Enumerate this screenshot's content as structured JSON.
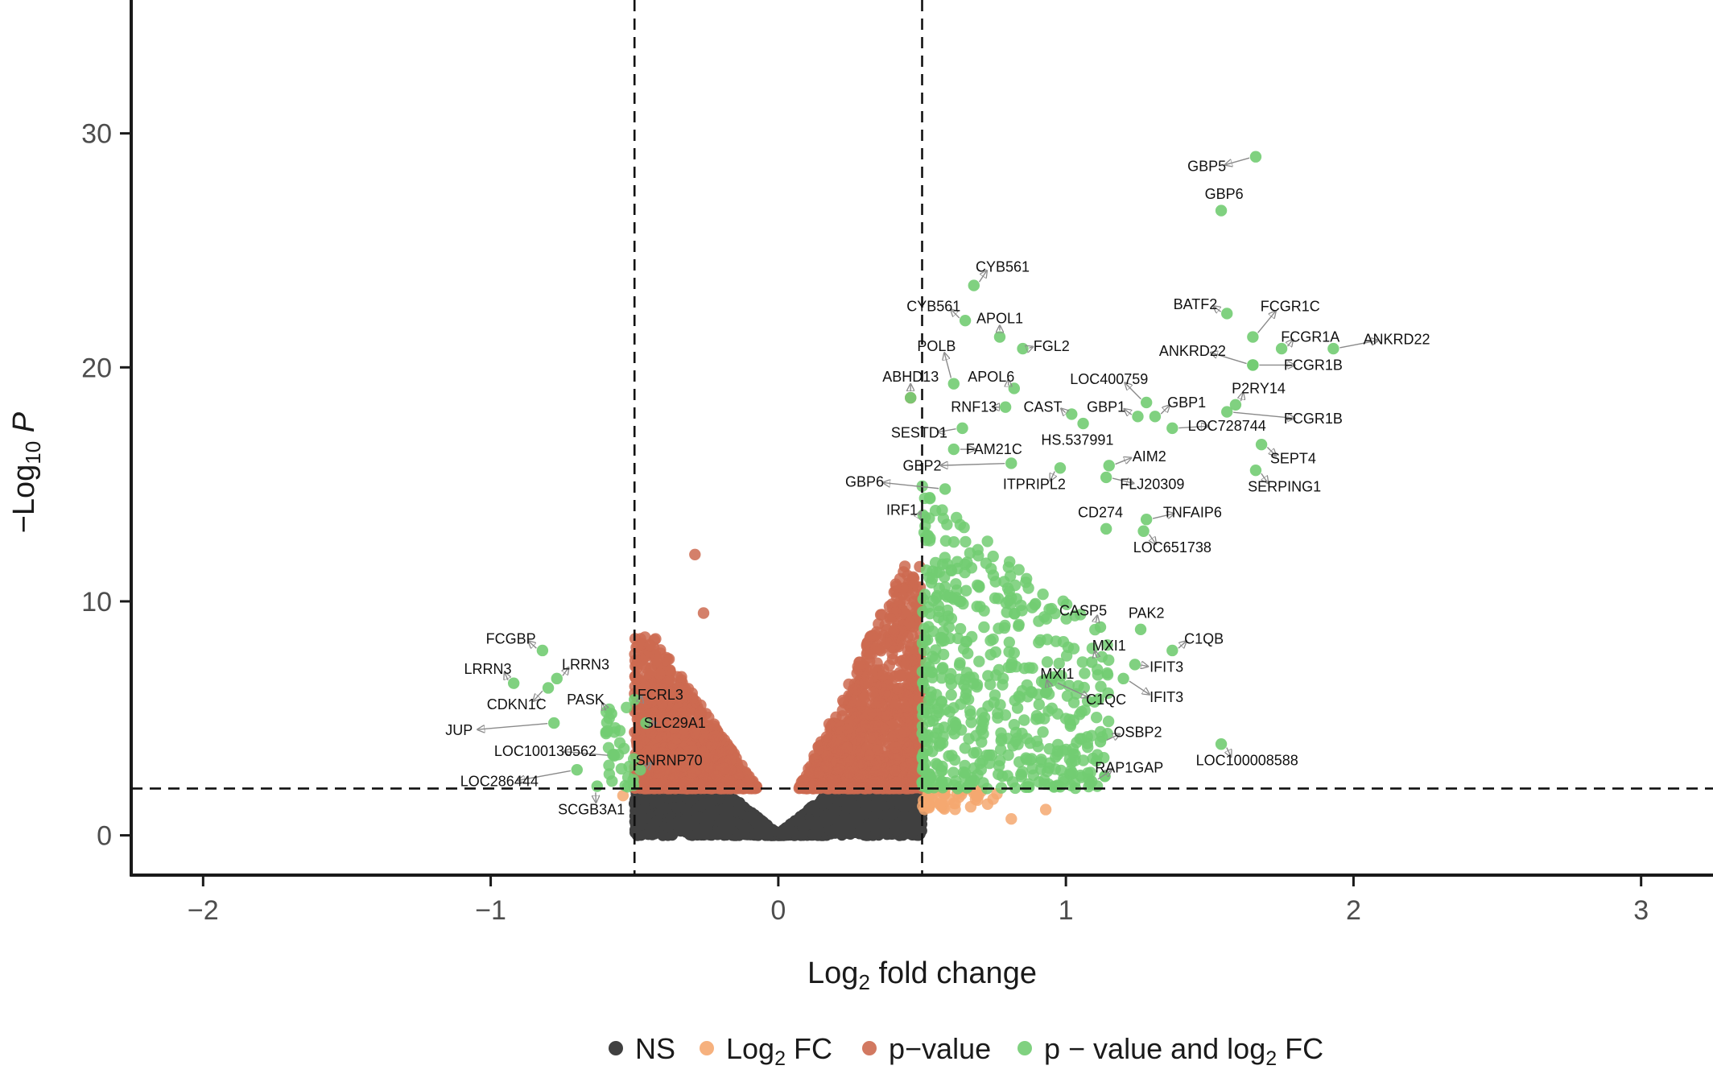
{
  "chart_data": {
    "type": "scatter",
    "subtype": "volcano",
    "title": "",
    "xlabel": "Log2 fold change",
    "ylabel": "-Log10 P",
    "xlim": [
      -2.25,
      3.25
    ],
    "ylim": [
      -1.7,
      35.7
    ],
    "x_ticks": [
      -2,
      -1,
      0,
      1,
      2,
      3
    ],
    "y_ticks": [
      0,
      10,
      20,
      30
    ],
    "x_tick_labels": [
      "−2",
      "−1",
      "0",
      "1",
      "2",
      "3"
    ],
    "y_tick_labels": [
      "0",
      "10",
      "20",
      "30"
    ],
    "fc_cutoff": 0.5,
    "p_cutoff": 2,
    "grid": false,
    "legend_position": "bottom",
    "colors": {
      "NS": "#404040",
      "Log2 FC": "#f5a870",
      "p-value": "#cd6a50",
      "p-value and log2 FC": "#72cc72"
    },
    "series": [
      {
        "name": "NS",
        "key": "ns",
        "color": "#404040"
      },
      {
        "name": "Log2 FC",
        "key": "fc",
        "color": "#f5a870"
      },
      {
        "name": "p-value",
        "key": "pv",
        "color": "#cd6a50"
      },
      {
        "name": "p-value and log2 FC",
        "key": "both",
        "color": "#72cc72"
      }
    ],
    "legend": [
      {
        "label": "NS",
        "sub": "",
        "suffix": ""
      },
      {
        "label": "Log",
        "sub": "2",
        "suffix": " FC"
      },
      {
        "label": "p−value",
        "sub": "",
        "suffix": ""
      },
      {
        "label": "p − value and log",
        "sub": "2",
        "suffix": " FC"
      }
    ],
    "labeled_points": [
      {
        "gene": "GBP5",
        "x": 1.66,
        "y": 29.0,
        "lx": 1.49,
        "ly": 28.6
      },
      {
        "gene": "GBP6",
        "x": 1.54,
        "y": 26.7,
        "lx": 1.55,
        "ly": 27.4
      },
      {
        "gene": "CYB561",
        "x": 0.68,
        "y": 23.5,
        "lx": 0.78,
        "ly": 24.3
      },
      {
        "gene": "CYB561",
        "x": 0.65,
        "y": 22.0,
        "lx": 0.54,
        "ly": 22.6
      },
      {
        "gene": "APOL1",
        "x": 0.77,
        "y": 21.3,
        "lx": 0.77,
        "ly": 22.1
      },
      {
        "gene": "FGL2",
        "x": 0.85,
        "y": 20.8,
        "lx": 0.95,
        "ly": 20.9
      },
      {
        "gene": "POLB",
        "x": 0.61,
        "y": 19.3,
        "lx": 0.55,
        "ly": 20.9
      },
      {
        "gene": "ABHD13",
        "x": 0.46,
        "y": 18.7,
        "lx": 0.46,
        "ly": 19.6
      },
      {
        "gene": "APOL6",
        "x": 0.82,
        "y": 19.1,
        "lx": 0.74,
        "ly": 19.6
      },
      {
        "gene": "RNF13",
        "x": 0.79,
        "y": 18.3,
        "lx": 0.68,
        "ly": 18.3
      },
      {
        "gene": "CAST",
        "x": 1.02,
        "y": 18.0,
        "lx": 0.92,
        "ly": 18.3
      },
      {
        "gene": "HS.537991",
        "x": 1.06,
        "y": 17.6,
        "lx": 1.04,
        "ly": 16.9
      },
      {
        "gene": "LOC400759",
        "x": 1.28,
        "y": 18.5,
        "lx": 1.15,
        "ly": 19.5
      },
      {
        "gene": "GBP1",
        "x": 1.25,
        "y": 17.9,
        "lx": 1.14,
        "ly": 18.3
      },
      {
        "gene": "GBP1",
        "x": 1.31,
        "y": 17.9,
        "lx": 1.42,
        "ly": 18.5
      },
      {
        "gene": "LOC728744",
        "x": 1.37,
        "y": 17.4,
        "lx": 1.56,
        "ly": 17.5
      },
      {
        "gene": "BATF2",
        "x": 1.56,
        "y": 22.3,
        "lx": 1.45,
        "ly": 22.7
      },
      {
        "gene": "FCGR1C",
        "x": 1.65,
        "y": 21.3,
        "lx": 1.78,
        "ly": 22.6
      },
      {
        "gene": "FCGR1A",
        "x": 1.75,
        "y": 20.8,
        "lx": 1.85,
        "ly": 21.3
      },
      {
        "gene": "ANKRD22",
        "x": 1.93,
        "y": 20.8,
        "lx": 2.15,
        "ly": 21.2
      },
      {
        "gene": "ANKRD22",
        "x": 1.65,
        "y": 20.1,
        "lx": 1.44,
        "ly": 20.7
      },
      {
        "gene": "FCGR1B",
        "x": 1.65,
        "y": 20.1,
        "lx": 1.86,
        "ly": 20.1
      },
      {
        "gene": "P2RY14",
        "x": 1.59,
        "y": 18.4,
        "lx": 1.67,
        "ly": 19.1
      },
      {
        "gene": "FCGR1B",
        "x": 1.56,
        "y": 18.1,
        "lx": 1.86,
        "ly": 17.8
      },
      {
        "gene": "SEPT4",
        "x": 1.68,
        "y": 16.7,
        "lx": 1.79,
        "ly": 16.1
      },
      {
        "gene": "SERPING1",
        "x": 1.66,
        "y": 15.6,
        "lx": 1.76,
        "ly": 14.9
      },
      {
        "gene": "SESTD1",
        "x": 0.64,
        "y": 17.4,
        "lx": 0.49,
        "ly": 17.2
      },
      {
        "gene": "FAM21C",
        "x": 0.61,
        "y": 16.5,
        "lx": 0.75,
        "ly": 16.5
      },
      {
        "gene": "GBP2",
        "x": 0.81,
        "y": 15.9,
        "lx": 0.5,
        "ly": 15.8
      },
      {
        "gene": "ITPRIPL2",
        "x": 0.98,
        "y": 15.7,
        "lx": 0.89,
        "ly": 15.0
      },
      {
        "gene": "AIM2",
        "x": 1.15,
        "y": 15.8,
        "lx": 1.29,
        "ly": 16.2
      },
      {
        "gene": "FLJ20309",
        "x": 1.14,
        "y": 15.3,
        "lx": 1.3,
        "ly": 15.0
      },
      {
        "gene": "GBP6",
        "x": 0.58,
        "y": 14.8,
        "lx": 0.3,
        "ly": 15.1
      },
      {
        "gene": "IRF1",
        "x": 0.51,
        "y": 13.6,
        "lx": 0.43,
        "ly": 13.9
      },
      {
        "gene": "CD274",
        "x": 1.14,
        "y": 13.1,
        "lx": 1.12,
        "ly": 13.8
      },
      {
        "gene": "TNFAIP6",
        "x": 1.28,
        "y": 13.5,
        "lx": 1.44,
        "ly": 13.8
      },
      {
        "gene": "LOC651738",
        "x": 1.27,
        "y": 13.0,
        "lx": 1.37,
        "ly": 12.3
      },
      {
        "gene": "CASP5",
        "x": 1.12,
        "y": 8.9,
        "lx": 1.06,
        "ly": 9.6
      },
      {
        "gene": "PAK2",
        "x": 1.26,
        "y": 8.8,
        "lx": 1.28,
        "ly": 9.5
      },
      {
        "gene": "C1QB",
        "x": 1.37,
        "y": 7.9,
        "lx": 1.48,
        "ly": 8.4
      },
      {
        "gene": "MXI1",
        "x": 1.09,
        "y": 7.4,
        "lx": 1.15,
        "ly": 8.1
      },
      {
        "gene": "IFIT3",
        "x": 1.24,
        "y": 7.3,
        "lx": 1.35,
        "ly": 7.2
      },
      {
        "gene": "MXI1",
        "x": 0.93,
        "y": 6.1,
        "lx": 0.97,
        "ly": 6.9
      },
      {
        "gene": "C1QC",
        "x": 0.95,
        "y": 6.6,
        "lx": 1.14,
        "ly": 5.8
      },
      {
        "gene": "IFIT3",
        "x": 1.2,
        "y": 6.7,
        "lx": 1.35,
        "ly": 5.9
      },
      {
        "gene": "OSBP2",
        "x": 1.12,
        "y": 4.0,
        "lx": 1.25,
        "ly": 4.4
      },
      {
        "gene": "LOC100008588",
        "x": 1.54,
        "y": 3.9,
        "lx": 1.63,
        "ly": 3.2
      },
      {
        "gene": "RAP1GAP",
        "x": 1.09,
        "y": 2.3,
        "lx": 1.22,
        "ly": 2.9
      },
      {
        "gene": "FCGBP",
        "x": -0.82,
        "y": 7.9,
        "lx": -0.93,
        "ly": 8.4
      },
      {
        "gene": "LRRN3",
        "x": -0.92,
        "y": 6.5,
        "lx": -1.01,
        "ly": 7.1
      },
      {
        "gene": "LRRN3",
        "x": -0.77,
        "y": 6.7,
        "lx": -0.67,
        "ly": 7.3
      },
      {
        "gene": "CDKN1C",
        "x": -0.8,
        "y": 6.3,
        "lx": -0.91,
        "ly": 5.6
      },
      {
        "gene": "PASK",
        "x": -0.58,
        "y": 5.2,
        "lx": -0.67,
        "ly": 5.8
      },
      {
        "gene": "FCRL3",
        "x": -0.5,
        "y": 5.8,
        "lx": -0.41,
        "ly": 6.0
      },
      {
        "gene": "SLC29A1",
        "x": -0.46,
        "y": 4.8,
        "lx": -0.36,
        "ly": 4.8
      },
      {
        "gene": "JUP",
        "x": -0.78,
        "y": 4.8,
        "lx": -1.11,
        "ly": 4.5
      },
      {
        "gene": "LOC100130562",
        "x": -0.57,
        "y": 3.4,
        "lx": -0.81,
        "ly": 3.6
      },
      {
        "gene": "SNRNP70",
        "x": -0.48,
        "y": 2.8,
        "lx": -0.38,
        "ly": 3.2
      },
      {
        "gene": "LOC286444",
        "x": -0.7,
        "y": 2.8,
        "lx": -0.97,
        "ly": 2.3
      },
      {
        "gene": "SCGB3A1",
        "x": -0.63,
        "y": 2.1,
        "lx": -0.65,
        "ly": 1.1
      }
    ]
  }
}
